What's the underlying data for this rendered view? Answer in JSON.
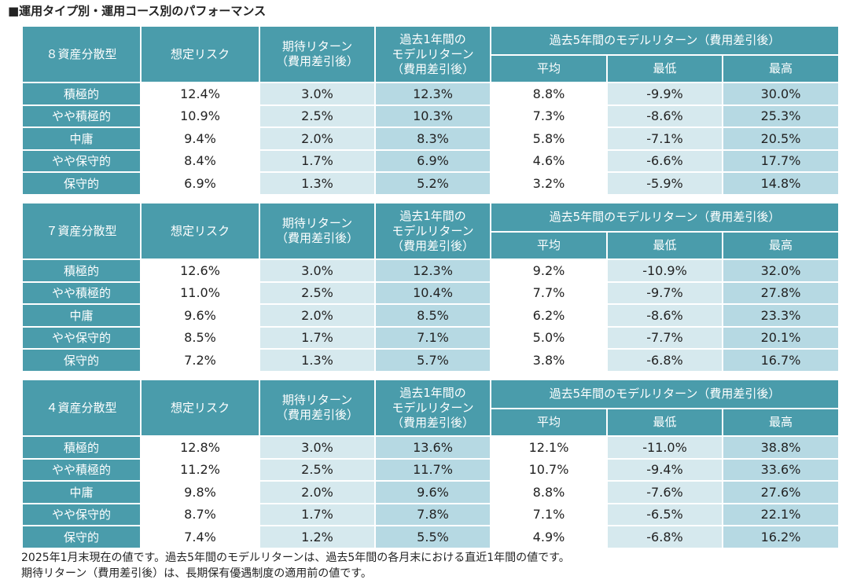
{
  "title": "■運用タイプ別・運用コース別のパフォーマンス",
  "headers": {
    "risk": "想定リスク",
    "expected_return": "期待リターン\n（費用差引後）",
    "one_year": "過去1年間の\nモデルリターン\n（費用差引後）",
    "five_year": "過去5年間のモデルリターン（費用差引後）",
    "avg": "平均",
    "min": "最低",
    "max": "最高"
  },
  "tables": [
    {
      "name": "８資産分散型",
      "rows": [
        {
          "label": "積極的",
          "risk": "12.4%",
          "expected": "3.0%",
          "one_year": "12.3%",
          "avg": "8.8%",
          "min": "-9.9%",
          "max": "30.0%"
        },
        {
          "label": "やや積極的",
          "risk": "10.9%",
          "expected": "2.5%",
          "one_year": "10.3%",
          "avg": "7.3%",
          "min": "-8.6%",
          "max": "25.3%"
        },
        {
          "label": "中庸",
          "risk": "9.4%",
          "expected": "2.0%",
          "one_year": "8.3%",
          "avg": "5.8%",
          "min": "-7.1%",
          "max": "20.5%"
        },
        {
          "label": "やや保守的",
          "risk": "8.4%",
          "expected": "1.7%",
          "one_year": "6.9%",
          "avg": "4.6%",
          "min": "-6.6%",
          "max": "17.7%"
        },
        {
          "label": "保守的",
          "risk": "6.9%",
          "expected": "1.3%",
          "one_year": "5.2%",
          "avg": "3.2%",
          "min": "-5.9%",
          "max": "14.8%"
        }
      ]
    },
    {
      "name": "７資産分散型",
      "rows": [
        {
          "label": "積極的",
          "risk": "12.6%",
          "expected": "3.0%",
          "one_year": "12.3%",
          "avg": "9.2%",
          "min": "-10.9%",
          "max": "32.0%"
        },
        {
          "label": "やや積極的",
          "risk": "11.0%",
          "expected": "2.5%",
          "one_year": "10.4%",
          "avg": "7.7%",
          "min": "-9.7%",
          "max": "27.8%"
        },
        {
          "label": "中庸",
          "risk": "9.6%",
          "expected": "2.0%",
          "one_year": "8.5%",
          "avg": "6.2%",
          "min": "-8.6%",
          "max": "23.3%"
        },
        {
          "label": "やや保守的",
          "risk": "8.5%",
          "expected": "1.7%",
          "one_year": "7.1%",
          "avg": "5.0%",
          "min": "-7.7%",
          "max": "20.1%"
        },
        {
          "label": "保守的",
          "risk": "7.2%",
          "expected": "1.3%",
          "one_year": "5.7%",
          "avg": "3.8%",
          "min": "-6.8%",
          "max": "16.7%"
        }
      ]
    },
    {
      "name": "４資産分散型",
      "rows": [
        {
          "label": "積極的",
          "risk": "12.8%",
          "expected": "3.0%",
          "one_year": "13.6%",
          "avg": "12.1%",
          "min": "-11.0%",
          "max": "38.8%"
        },
        {
          "label": "やや積極的",
          "risk": "11.2%",
          "expected": "2.5%",
          "one_year": "11.7%",
          "avg": "10.7%",
          "min": "-9.4%",
          "max": "33.6%"
        },
        {
          "label": "中庸",
          "risk": "9.8%",
          "expected": "2.0%",
          "one_year": "9.6%",
          "avg": "8.8%",
          "min": "-7.6%",
          "max": "27.6%"
        },
        {
          "label": "やや保守的",
          "risk": "8.7%",
          "expected": "1.7%",
          "one_year": "7.8%",
          "avg": "7.1%",
          "min": "-6.5%",
          "max": "22.1%"
        },
        {
          "label": "保守的",
          "risk": "7.4%",
          "expected": "1.2%",
          "one_year": "5.5%",
          "avg": "4.9%",
          "min": "-6.8%",
          "max": "16.2%"
        }
      ]
    }
  ],
  "notes": [
    "2025年1月末現在の値です。過去5年間のモデルリターンは、過去5年間の各月末における直近1年間の値です。",
    "期待リターン（費用差引後）は、長期保有優遇制度の適用前の値です。"
  ]
}
